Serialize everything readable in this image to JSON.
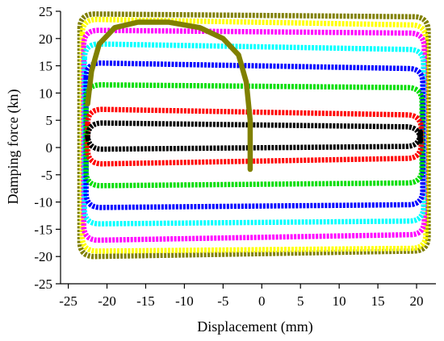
{
  "chart_data": {
    "type": "line",
    "title": "",
    "xlabel": "Displacement (mm)",
    "ylabel": "Damping force (kn)",
    "xlim": [
      -26,
      22.5
    ],
    "ylim": [
      -25,
      25
    ],
    "xticks": [
      -25,
      -20,
      -15,
      -10,
      -5,
      0,
      5,
      10,
      15,
      20
    ],
    "yticks": [
      -25,
      -20,
      -15,
      -10,
      -5,
      0,
      5,
      10,
      15,
      20,
      25
    ],
    "grid": false,
    "legend": "none",
    "series": [
      {
        "color": "#000000",
        "x_min": -22.5,
        "x_max": 20.5,
        "upper_left": 4.5,
        "upper_right": 3.8,
        "lower_left": -0.3,
        "lower_right": 0.2
      },
      {
        "color": "#ff0000",
        "x_min": -22.5,
        "x_max": 20.6,
        "upper_left": 7.0,
        "upper_right": 6.0,
        "lower_left": -3.0,
        "lower_right": -2.0
      },
      {
        "color": "#00dd00",
        "x_min": -22.7,
        "x_max": 20.7,
        "upper_left": 11.5,
        "upper_right": 11.0,
        "lower_left": -7.0,
        "lower_right": -6.5
      },
      {
        "color": "#0000ff",
        "x_min": -22.7,
        "x_max": 20.8,
        "upper_left": 15.5,
        "upper_right": 14.5,
        "lower_left": -11.0,
        "lower_right": -10.5
      },
      {
        "color": "#00ffff",
        "x_min": -22.9,
        "x_max": 20.9,
        "upper_left": 19.0,
        "upper_right": 18.0,
        "lower_left": -14.0,
        "lower_right": -13.5
      },
      {
        "color": "#ff00ff",
        "x_min": -23.0,
        "x_max": 21.0,
        "upper_left": 21.5,
        "upper_right": 21.0,
        "lower_left": -17.0,
        "lower_right": -16.0
      },
      {
        "color": "#ffff00",
        "x_min": -23.2,
        "x_max": 21.2,
        "upper_left": 23.5,
        "upper_right": 22.5,
        "lower_left": -19.0,
        "lower_right": -18.5
      },
      {
        "color": "#808000",
        "x_min": -23.5,
        "x_max": 21.5,
        "upper_left": 24.5,
        "upper_right": 24.0,
        "lower_left": -20.0,
        "lower_right": -19.0
      }
    ],
    "initial_loading_curve": {
      "color": "#808000",
      "x": [
        -1.5,
        -1.5,
        -2.0,
        -3.0,
        -5.0,
        -8.0,
        -12.0,
        -16.0,
        -19.0,
        -21.0,
        -22.0,
        -22.5
      ],
      "y": [
        -4.0,
        5.0,
        12.0,
        17.0,
        20.0,
        22.0,
        23.0,
        23.0,
        22.0,
        19.0,
        14.0,
        8.0
      ]
    }
  }
}
